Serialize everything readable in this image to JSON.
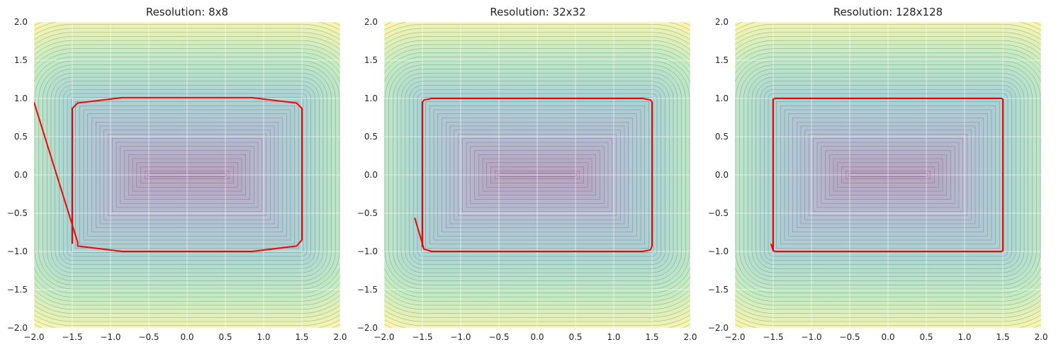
{
  "figure": {
    "colors": {
      "plot_background": "#eaeaf2",
      "grid": "#ffffff",
      "boundary": "#ff0000",
      "contour_lines": "#3a3a4a",
      "colormap": [
        "#440154",
        "#3b528b",
        "#21918c",
        "#5ec962",
        "#fde725"
      ]
    }
  },
  "chart_data": [
    {
      "type": "contour",
      "title": "Resolution: 8x8",
      "xlim": [
        -2.0,
        2.0
      ],
      "ylim": [
        -2.0,
        2.0
      ],
      "xticks": [
        "−2.0",
        "−1.5",
        "−1.0",
        "−0.5",
        "0.0",
        "0.5",
        "1.0",
        "1.5",
        "2.0"
      ],
      "yticks": [
        "2.0",
        "1.5",
        "1.0",
        "0.5",
        "0.0",
        "−0.5",
        "−1.0",
        "−1.5",
        "−2.0"
      ],
      "grid": true,
      "field": "signed distance to rectangle |x|≤1.5, |y|≤1.0",
      "zero_level_polyline": [
        [
          -2.0,
          0.95
        ],
        [
          -1.43,
          -0.88
        ],
        [
          -1.43,
          -0.93
        ],
        [
          -0.85,
          -1.0
        ],
        [
          0.85,
          -1.0
        ],
        [
          1.43,
          -0.93
        ],
        [
          1.5,
          -0.85
        ],
        [
          1.5,
          0.87
        ],
        [
          1.43,
          0.94
        ],
        [
          0.85,
          1.01
        ],
        [
          -0.85,
          1.01
        ],
        [
          -1.43,
          0.94
        ],
        [
          -1.5,
          0.87
        ],
        [
          -1.5,
          -0.9
        ]
      ]
    },
    {
      "type": "contour",
      "title": "Resolution: 32x32",
      "xlim": [
        -2.0,
        2.0
      ],
      "ylim": [
        -2.0,
        2.0
      ],
      "xticks": [
        "−2.0",
        "−1.5",
        "−1.0",
        "−0.5",
        "0.0",
        "0.5",
        "1.0",
        "1.5",
        "2.0"
      ],
      "yticks": [
        "2.0",
        "1.5",
        "1.0",
        "0.5",
        "0.0",
        "−0.5",
        "−1.0",
        "−1.5",
        "−2.0"
      ],
      "grid": true,
      "field": "signed distance to rectangle |x|≤1.5, |y|≤1.0",
      "zero_level_polyline": [
        [
          -1.6,
          -0.56
        ],
        [
          -1.48,
          -0.97
        ],
        [
          -1.38,
          -1.0
        ],
        [
          1.38,
          -1.0
        ],
        [
          1.48,
          -0.98
        ],
        [
          1.5,
          -0.93
        ],
        [
          1.5,
          0.95
        ],
        [
          1.48,
          0.98
        ],
        [
          1.38,
          1.0
        ],
        [
          -1.38,
          1.0
        ],
        [
          -1.48,
          0.98
        ],
        [
          -1.5,
          0.95
        ],
        [
          -1.5,
          -0.93
        ],
        [
          -1.48,
          -0.97
        ]
      ]
    },
    {
      "type": "contour",
      "title": "Resolution: 128x128",
      "xlim": [
        -2.0,
        2.0
      ],
      "ylim": [
        -2.0,
        2.0
      ],
      "xticks": [
        "−2.0",
        "−1.5",
        "−1.0",
        "−0.5",
        "0.0",
        "0.5",
        "1.0",
        "1.5",
        "2.0"
      ],
      "yticks": [
        "2.0",
        "1.5",
        "1.0",
        "0.5",
        "0.0",
        "−0.5",
        "−1.0",
        "−1.5",
        "−2.0"
      ],
      "grid": true,
      "field": "signed distance to rectangle |x|≤1.5, |y|≤1.0",
      "zero_level_polyline": [
        [
          -1.53,
          -0.9
        ],
        [
          -1.5,
          -0.99
        ],
        [
          -1.47,
          -1.0
        ],
        [
          1.48,
          -1.0
        ],
        [
          1.5,
          -0.99
        ],
        [
          1.5,
          0.99
        ],
        [
          1.48,
          1.0
        ],
        [
          -1.47,
          1.0
        ],
        [
          -1.5,
          0.99
        ],
        [
          -1.5,
          -0.99
        ]
      ]
    }
  ]
}
